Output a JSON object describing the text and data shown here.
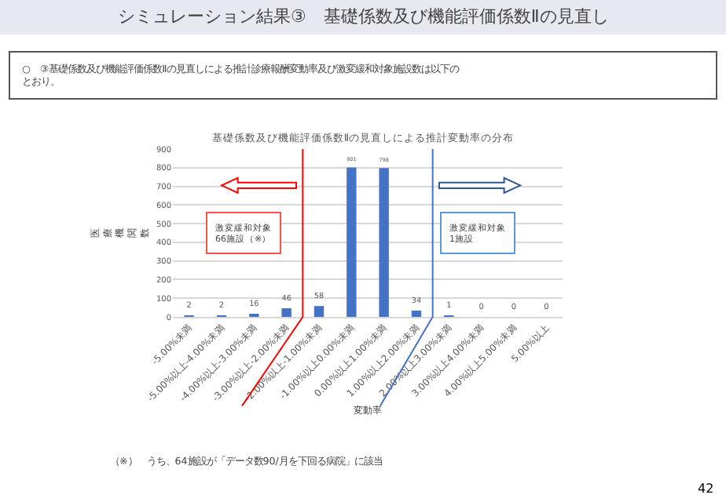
{
  "chart_data": {
    "type": "bar",
    "title": "基礎係数及び機能評価係数Ⅱの見直しによる推計変動率の分布",
    "xlabel": "変動率",
    "ylabel": "医療機関数",
    "categories": [
      "-5.00%未満",
      "-5.00%以上-4.00%未満",
      "-4.00%以上-3.00%未満",
      "-3.00%以上-2.00%未満",
      "-2.00%以上-1.00%未満",
      "-1.00%以上0.00%未満",
      "0.00%以上1.00%未満",
      "1.00%以上2.00%未満",
      "2.00%以上3.00%未満",
      "3.00%以上4.00%未満",
      "4.00%以上5.00%未満",
      "5.00%以上"
    ],
    "series": [
      {
        "color": "#4472c4",
        "values": [
          2,
          2,
          16,
          46,
          58,
          801,
          798,
          34,
          1,
          0,
          0,
          0
        ]
      }
    ],
    "data_labels": true,
    "ylim": [
      0,
      900
    ],
    "yticks": [
      0,
      100,
      200,
      300,
      400,
      500,
      600,
      700,
      800,
      900
    ],
    "grid": "y",
    "legend": false,
    "annotations": [
      "シミュレーション結果③　基礎係数及び機能評価係数Ⅱの見直し",
      "○　③基礎係数及び機能評価係数Ⅱの見直しによる推計診療報酬変動率及び激変緩和対象施設数は以下のとおり。",
      "激変緩和対象\n66施設（※）",
      "激変緩和対象\n1施設",
      "（※）　うち、64施設が「データ数90/月を下回る病院」に該当",
      "42"
    ]
  }
}
